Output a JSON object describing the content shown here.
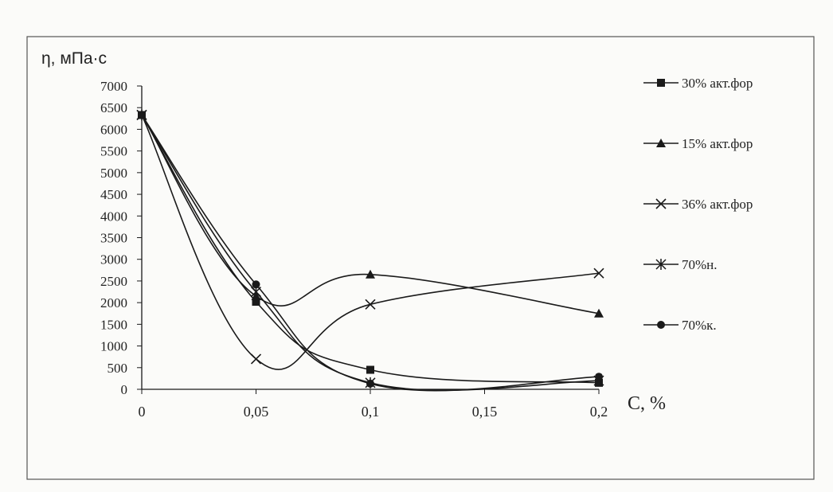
{
  "chart_data": {
    "type": "line",
    "title": "",
    "ylabel": "η, мПа·с",
    "xlabel": "C, %",
    "xlim": [
      0,
      0.2
    ],
    "ylim": [
      0,
      7000
    ],
    "x_ticks": [
      {
        "value": 0,
        "label": "0"
      },
      {
        "value": 0.05,
        "label": "0,05"
      },
      {
        "value": 0.1,
        "label": "0,1"
      },
      {
        "value": 0.15,
        "label": "0,15"
      },
      {
        "value": 0.2,
        "label": "0,2"
      }
    ],
    "y_ticks": [
      {
        "value": 0,
        "label": "0"
      },
      {
        "value": 500,
        "label": "500"
      },
      {
        "value": 1000,
        "label": "1000"
      },
      {
        "value": 1500,
        "label": "1500"
      },
      {
        "value": 2000,
        "label": "2000"
      },
      {
        "value": 2500,
        "label": "2500"
      },
      {
        "value": 3000,
        "label": "3000"
      },
      {
        "value": 3500,
        "label": "3500"
      },
      {
        "value": 4000,
        "label": "4000"
      },
      {
        "value": 4500,
        "label": "4500"
      },
      {
        "value": 5000,
        "label": "5000"
      },
      {
        "value": 5500,
        "label": "5500"
      },
      {
        "value": 6000,
        "label": "6000"
      },
      {
        "value": 6500,
        "label": "6500"
      },
      {
        "value": 7000,
        "label": "7000"
      }
    ],
    "grid": false,
    "legend_position": "right",
    "x": [
      0,
      0.05,
      0.1,
      0.2
    ],
    "series": [
      {
        "name": "30% акт.фор",
        "marker": "square",
        "values": [
          6330,
          2020,
          450,
          150
        ]
      },
      {
        "name": "15% акт.фор",
        "marker": "triangle",
        "values": [
          6330,
          2150,
          2650,
          1750
        ]
      },
      {
        "name": "36% акт.фор",
        "marker": "x",
        "values": [
          6330,
          700,
          1960,
          2680
        ]
      },
      {
        "name": "70%н.",
        "marker": "star",
        "values": [
          6330,
          2250,
          150,
          200
        ]
      },
      {
        "name": "70%к.",
        "marker": "circle",
        "values": [
          6330,
          2420,
          130,
          290
        ]
      }
    ],
    "colors": {
      "line": "#1a1a1a",
      "frame": "#555555",
      "background": "#fbfbf9"
    }
  }
}
